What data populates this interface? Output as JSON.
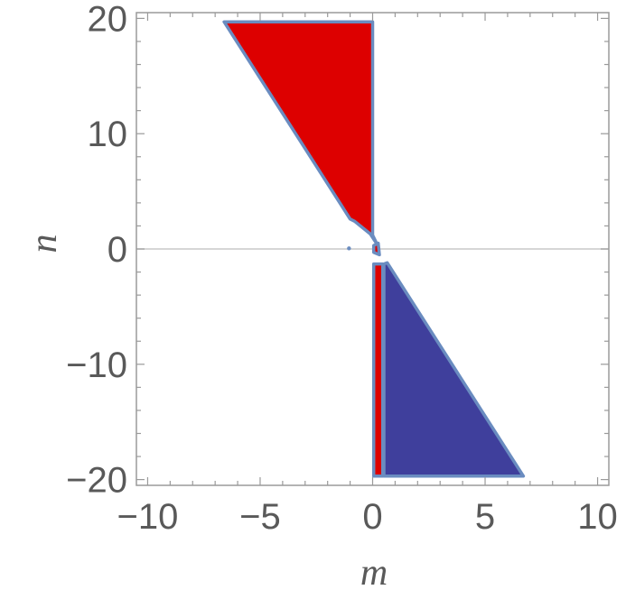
{
  "chart_data": {
    "type": "area",
    "xlabel": "m",
    "ylabel": "n",
    "xlim": [
      -10.5,
      10.5
    ],
    "ylim": [
      -20.5,
      20.5
    ],
    "grid": false,
    "frame": true,
    "x_ticks": [
      -10,
      -5,
      0,
      5,
      10
    ],
    "y_ticks": [
      -20,
      -10,
      0,
      10,
      20
    ],
    "x_tick_labels": [
      "−10",
      "−5",
      "0",
      "5",
      "10"
    ],
    "y_tick_labels": [
      "−20",
      "−10",
      "0",
      "10",
      "20"
    ],
    "reference_lines": [
      {
        "axis": "y",
        "value": 0,
        "color": "#c8c8c8"
      }
    ],
    "regions": [
      {
        "fill": "#dd0000",
        "edge": "#6a8cc0",
        "points": [
          [
            -6.6,
            19.7
          ],
          [
            0,
            19.7
          ],
          [
            0,
            1.2
          ],
          [
            0.2,
            0.4
          ],
          [
            -0.1,
            1.3
          ],
          [
            -0.8,
            2.4
          ],
          [
            -1.0,
            2.6
          ]
        ]
      },
      {
        "fill": "#dd0000",
        "edge": "#6a8cc0",
        "points": [
          [
            0.05,
            0.3
          ],
          [
            0.25,
            0.5
          ],
          [
            0.3,
            -0.5
          ],
          [
            0.05,
            -0.3
          ]
        ]
      },
      {
        "fill": "#dd0000",
        "edge": "#6a8cc0",
        "points": [
          [
            0.05,
            -1.3
          ],
          [
            0.45,
            -1.3
          ],
          [
            0.45,
            -19.7
          ],
          [
            0.05,
            -19.7
          ]
        ]
      },
      {
        "fill": "#3f3f9c",
        "edge": "#6a8cc0",
        "points": [
          [
            0.5,
            -1.3
          ],
          [
            0.65,
            -1.2
          ],
          [
            6.7,
            -19.7
          ],
          [
            0.5,
            -19.7
          ]
        ]
      }
    ],
    "points": [
      {
        "x": -1.05,
        "y": 0.05,
        "color": "#6a8cc0"
      }
    ]
  }
}
